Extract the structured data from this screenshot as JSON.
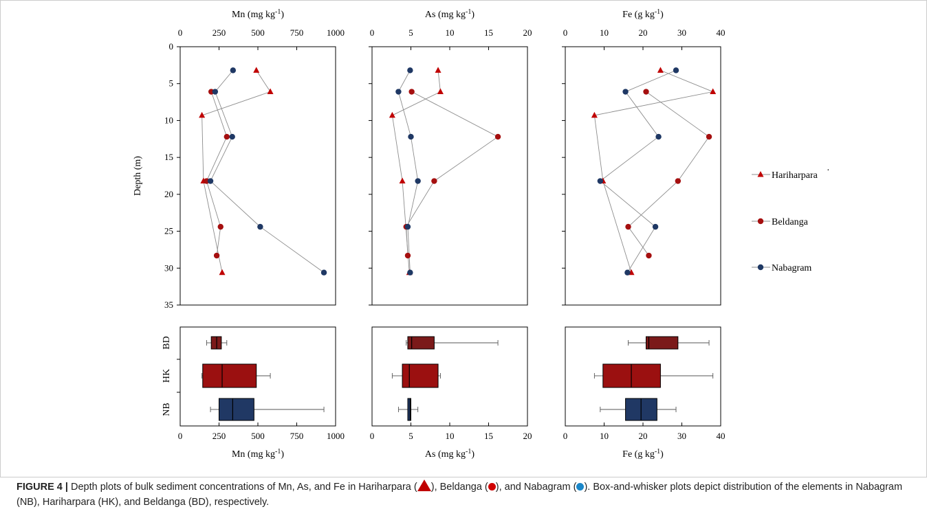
{
  "chart_data": [
    {
      "type": "scatter",
      "panel": "Mn depth profile",
      "xlabel": "Mn (mg kg-1)",
      "ylabel": "Depth (m)",
      "xlim": [
        0,
        1000
      ],
      "ylim": [
        0,
        35
      ],
      "xticks": [
        "0",
        "250",
        "500",
        "750",
        "1000"
      ],
      "yticks": [
        "0",
        "5",
        "10",
        "15",
        "20",
        "25",
        "30",
        "35"
      ],
      "series": [
        {
          "name": "Hariharpara",
          "points": [
            [
              490,
              3.2
            ],
            [
              580,
              6.1
            ],
            [
              140,
              9.3
            ],
            [
              150,
              18.2
            ],
            [
              270,
              30.6
            ]
          ]
        },
        {
          "name": "Beldanga",
          "points": [
            [
              200,
              6.1
            ],
            [
              300,
              12.2
            ],
            [
              170,
              18.2
            ],
            [
              260,
              24.4
            ],
            [
              235,
              28.3
            ]
          ]
        },
        {
          "name": "Nabagram",
          "points": [
            [
              340,
              3.2
            ],
            [
              225,
              6.1
            ],
            [
              335,
              12.2
            ],
            [
              195,
              18.2
            ],
            [
              515,
              24.4
            ],
            [
              925,
              30.6
            ]
          ]
        }
      ]
    },
    {
      "type": "scatter",
      "panel": "As depth profile",
      "xlabel": "As (mg kg-1)",
      "xlim": [
        0,
        20
      ],
      "ylim": [
        0,
        35
      ],
      "xticks": [
        "0",
        "5",
        "10",
        "15",
        "20"
      ],
      "series": [
        {
          "name": "Hariharpara",
          "points": [
            [
              8.5,
              3.2
            ],
            [
              8.8,
              6.1
            ],
            [
              2.6,
              9.3
            ],
            [
              3.9,
              18.2
            ],
            [
              4.8,
              30.6
            ]
          ]
        },
        {
          "name": "Beldanga",
          "points": [
            [
              5.1,
              6.1
            ],
            [
              16.2,
              12.2
            ],
            [
              8.0,
              18.2
            ],
            [
              4.4,
              24.4
            ],
            [
              4.6,
              28.3
            ]
          ]
        },
        {
          "name": "Nabagram",
          "points": [
            [
              4.9,
              3.2
            ],
            [
              3.4,
              6.1
            ],
            [
              5.0,
              12.2
            ],
            [
              5.9,
              18.2
            ],
            [
              4.6,
              24.4
            ],
            [
              4.9,
              30.6
            ]
          ]
        }
      ]
    },
    {
      "type": "scatter",
      "panel": "Fe depth profile",
      "xlabel": "Fe (g kg-1)",
      "xlim": [
        0,
        40
      ],
      "ylim": [
        0,
        35
      ],
      "xticks": [
        "0",
        "10",
        "20",
        "30",
        "40"
      ],
      "series": [
        {
          "name": "Hariharpara",
          "points": [
            [
              24.5,
              3.2
            ],
            [
              38,
              6.1
            ],
            [
              7.5,
              9.3
            ],
            [
              9.7,
              18.2
            ],
            [
              17,
              30.6
            ]
          ]
        },
        {
          "name": "Beldanga",
          "points": [
            [
              20.8,
              6.1
            ],
            [
              37,
              12.2
            ],
            [
              29,
              18.2
            ],
            [
              16.2,
              24.4
            ],
            [
              21.5,
              28.3
            ]
          ]
        },
        {
          "name": "Nabagram",
          "points": [
            [
              28.5,
              3.2
            ],
            [
              15.5,
              6.1
            ],
            [
              24,
              12.2
            ],
            [
              9,
              18.2
            ],
            [
              23.2,
              24.4
            ],
            [
              16,
              30.6
            ]
          ]
        }
      ]
    },
    {
      "type": "box",
      "panel": "Mn box plot",
      "xlabel": "Mn (mg kg-1)",
      "xlim": [
        0,
        1000
      ],
      "xticks": [
        "0",
        "250",
        "500",
        "750",
        "1000"
      ],
      "categories": [
        "BD",
        "HK",
        "NB"
      ],
      "boxes": [
        {
          "name": "BD",
          "min": 170,
          "q1": 200,
          "median": 235,
          "q3": 265,
          "max": 300
        },
        {
          "name": "HK",
          "min": 140,
          "q1": 145,
          "median": 270,
          "q3": 490,
          "max": 580
        },
        {
          "name": "NB",
          "min": 195,
          "q1": 250,
          "median": 338,
          "q3": 475,
          "max": 925
        }
      ]
    },
    {
      "type": "box",
      "panel": "As box plot",
      "xlabel": "As (mg kg-1)",
      "xlim": [
        0,
        20
      ],
      "xticks": [
        "0",
        "5",
        "10",
        "15",
        "20"
      ],
      "categories": [
        "BD",
        "HK",
        "NB"
      ],
      "boxes": [
        {
          "name": "BD",
          "min": 4.4,
          "q1": 4.6,
          "median": 5.1,
          "q3": 8.0,
          "max": 16.2
        },
        {
          "name": "HK",
          "min": 2.6,
          "q1": 3.9,
          "median": 4.8,
          "q3": 8.5,
          "max": 8.8
        },
        {
          "name": "NB",
          "min": 3.4,
          "q1": 4.6,
          "median": 4.9,
          "q3": 5.0,
          "max": 5.9
        }
      ]
    },
    {
      "type": "box",
      "panel": "Fe box plot",
      "xlabel": "Fe (g kg-1)",
      "xlim": [
        0,
        40
      ],
      "xticks": [
        "0",
        "10",
        "20",
        "30",
        "40"
      ],
      "categories": [
        "BD",
        "HK",
        "NB"
      ],
      "boxes": [
        {
          "name": "BD",
          "min": 16.2,
          "q1": 20.8,
          "median": 21.5,
          "q3": 29,
          "max": 37
        },
        {
          "name": "HK",
          "min": 7.5,
          "q1": 9.7,
          "median": 17,
          "q3": 24.5,
          "max": 38
        },
        {
          "name": "NB",
          "min": 9,
          "q1": 15.5,
          "median": 19.5,
          "q3": 23.6,
          "max": 28.5
        }
      ]
    }
  ],
  "legend": {
    "entries": [
      "Hariharpara",
      "Beldanga",
      "Nabagram"
    ],
    "stray_mark": "·"
  },
  "colors": {
    "hariharpara": "#c00000",
    "beldanga": "#a50f0f",
    "nabagram": "#1f3864",
    "box_red": "#7b1a1a",
    "box_red_light": "#9b1010",
    "box_blue": "#203864",
    "caption_nabagram_dot": "#1a86c8",
    "caption_beldanga_dot": "#d00000"
  },
  "caption": {
    "label": "FIGURE 4 |",
    "part1": "Depth plots of bulk sediment concentrations of Mn, As, and Fe in Hariharpara (",
    "part2": "), Beldanga (",
    "part3": "), and Nabagram (",
    "part4": ").  Box-and-whisker plots depict distribution of the elements in Nabagram (NB), Hariharpara (HK), and Beldanga (BD), respectively."
  }
}
